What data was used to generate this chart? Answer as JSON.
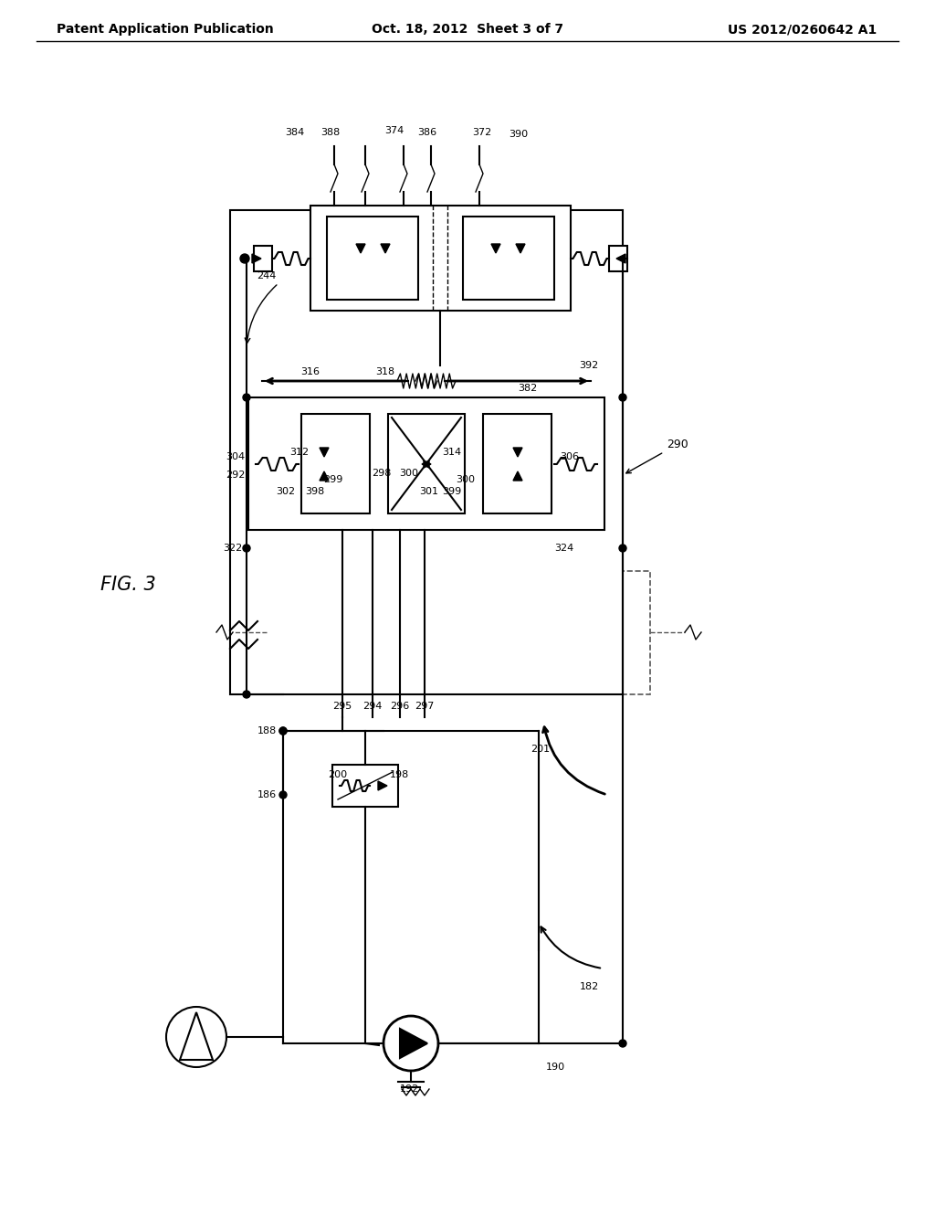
{
  "bg_color": "#ffffff",
  "line_color": "#000000",
  "header_left": "Patent Application Publication",
  "header_center": "Oct. 18, 2012  Sheet 3 of 7",
  "header_right": "US 2012/0260642 A1"
}
